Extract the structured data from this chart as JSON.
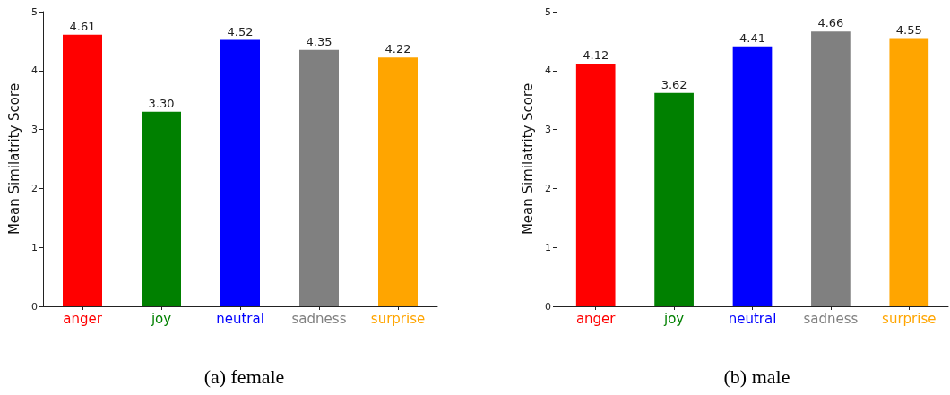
{
  "chart_data": [
    {
      "type": "bar",
      "categories": [
        "anger",
        "joy",
        "neutral",
        "sadness",
        "surprise"
      ],
      "values": [
        4.61,
        3.3,
        4.52,
        4.35,
        4.22
      ],
      "colors": [
        "#ff0000",
        "#008000",
        "#0000ff",
        "#808080",
        "#ffa500"
      ],
      "value_labels": [
        "4.61",
        "3.30",
        "4.52",
        "4.35",
        "4.22"
      ],
      "ylabel": "Mean Similatrity Score",
      "ylim": [
        0,
        5
      ],
      "yticks": [
        0,
        1,
        2,
        3,
        4,
        5
      ],
      "annotations": [
        "(a) female"
      ]
    },
    {
      "type": "bar",
      "categories": [
        "anger",
        "joy",
        "neutral",
        "sadness",
        "surprise"
      ],
      "values": [
        4.12,
        3.62,
        4.41,
        4.66,
        4.55
      ],
      "colors": [
        "#ff0000",
        "#008000",
        "#0000ff",
        "#808080",
        "#ffa500"
      ],
      "value_labels": [
        "4.12",
        "3.62",
        "4.41",
        "4.66",
        "4.55"
      ],
      "ylabel": "Mean Similatrity Score",
      "ylim": [
        0,
        5
      ],
      "yticks": [
        0,
        1,
        2,
        3,
        4,
        5
      ],
      "annotations": [
        "(b) male"
      ]
    }
  ]
}
